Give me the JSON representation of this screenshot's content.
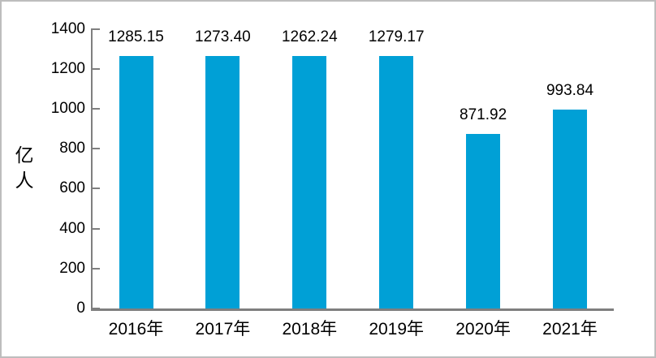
{
  "chart_data": {
    "type": "bar",
    "categories": [
      "2016年",
      "2017年",
      "2018年",
      "2019年",
      "2020年",
      "2021年"
    ],
    "values": [
      1285.15,
      1273.4,
      1262.24,
      1279.17,
      871.92,
      993.84
    ],
    "display_values": [
      "1285.15",
      "1273.40",
      "1262.24",
      "1279.17",
      "871.92",
      "993.84"
    ],
    "title": "",
    "xlabel": "",
    "ylabel": "亿人",
    "ylim": [
      0,
      1400
    ],
    "yticks": [
      1400,
      1200,
      1000,
      800,
      600,
      400,
      200,
      0
    ],
    "ytick_labels": [
      "1400",
      "1200",
      "1000",
      "800",
      "600",
      "400",
      "200",
      "0"
    ],
    "grid": false,
    "legend": "none",
    "data_labels_position": "outside-end",
    "bar_color": "#00a0d6",
    "axis_color": "#7f7f7f",
    "text_color": "#000000",
    "frame_border_color": "#bdbdbd"
  }
}
